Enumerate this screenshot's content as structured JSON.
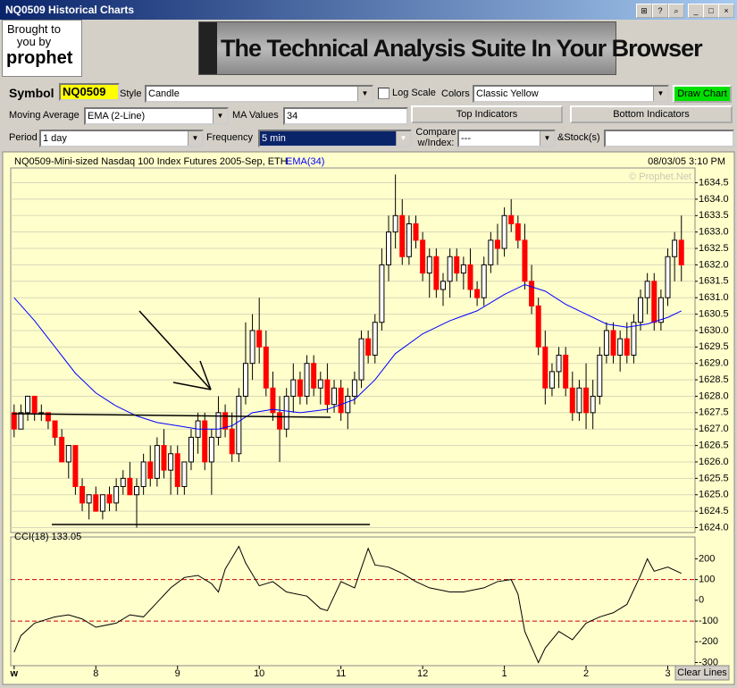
{
  "window": {
    "title": "NQ0509 Historical Charts"
  },
  "banner": {
    "brought_by": "Brought to you by",
    "brand": "prophet",
    "slogan": "The Technical Analysis Suite In Your Browser"
  },
  "controls": {
    "symbol_label": "Symbol",
    "symbol": "NQ0509",
    "style_label": "Style",
    "style": "Candle",
    "log_scale": "Log Scale",
    "colors_label": "Colors",
    "colors": "Classic Yellow",
    "draw_chart": "Draw Chart",
    "ma_label": "Moving Average",
    "ma": "EMA (2-Line)",
    "ma_values_label": "MA Values",
    "ma_values": "34",
    "top_indicators": "Top Indicators",
    "bottom_indicators": "Bottom Indicators",
    "period_label": "Period",
    "period": "1 day",
    "frequency_label": "Frequency",
    "frequency": "5 min",
    "compare_label": "Compare w/Index:",
    "compare": "---",
    "stocks_label": "&Stock(s)",
    "clear_lines": "Clear Lines"
  },
  "chart_data": [
    {
      "type": "candlestick",
      "title": "NQ0509-Mini-sized Nasdaq 100 Index Futures 2005-Sep, ETH",
      "indicator": "EMA(34)",
      "timestamp": "08/03/05 3:10 PM",
      "watermark": "© Prophet.Net",
      "xlim": [
        -0.5,
        100
      ],
      "xticks": [
        {
          "value": 0,
          "label": "w"
        },
        {
          "value": 12,
          "label": "8"
        },
        {
          "value": 24,
          "label": "9"
        },
        {
          "value": 36,
          "label": "10"
        },
        {
          "value": 48,
          "label": "11"
        },
        {
          "value": 60,
          "label": "12"
        },
        {
          "value": 72,
          "label": "1"
        },
        {
          "value": 84,
          "label": "2"
        },
        {
          "value": 96,
          "label": "3"
        }
      ],
      "ylim": [
        1623.85,
        1634.95
      ],
      "yticks": [
        {
          "value": 1624,
          "label": "1624.0"
        },
        1624.5,
        {
          "value": 1625,
          "label": "1625.0"
        },
        1625.5,
        {
          "value": 1626,
          "label": "1626.0"
        },
        1626.5,
        {
          "value": 1627,
          "label": "1627.0"
        },
        1627.5,
        {
          "value": 1628,
          "label": "1628.0"
        },
        1628.5,
        {
          "value": 1629,
          "label": "1629.0"
        },
        1629.5,
        {
          "value": 1630,
          "label": "1630.0"
        },
        1630.5,
        {
          "value": 1631,
          "label": "1631.0"
        },
        1631.5,
        {
          "value": 1632,
          "label": "1632.0"
        },
        1632.5,
        {
          "value": 1633,
          "label": "1633.0"
        },
        1633.5,
        {
          "value": 1634,
          "label": "1634.0"
        },
        1634.5
      ],
      "grid": true,
      "up_color": "#ffffff",
      "down_color": "#ff0000",
      "candles": [
        [
          1627.5,
          1627.75,
          1626.75,
          1627
        ],
        [
          1627,
          1627.75,
          1627,
          1627.5
        ],
        [
          1627.5,
          1628,
          1627.25,
          1628
        ],
        [
          1628,
          1628,
          1627.25,
          1627.5
        ],
        [
          1627.5,
          1627.75,
          1627.25,
          1627.5
        ],
        [
          1627.5,
          1627.5,
          1627,
          1627.25
        ],
        [
          1627.25,
          1627.25,
          1626.5,
          1626.75
        ],
        [
          1626.75,
          1627,
          1626,
          1626
        ],
        [
          1626,
          1626.5,
          1625.5,
          1626.5
        ],
        [
          1626.5,
          1626.5,
          1625,
          1625.25
        ],
        [
          1625.25,
          1625.5,
          1624.5,
          1624.75
        ],
        [
          1624.75,
          1625,
          1624.25,
          1625
        ],
        [
          1625,
          1625.25,
          1624.5,
          1624.5
        ],
        [
          1624.5,
          1625,
          1624.25,
          1625
        ],
        [
          1625,
          1625.25,
          1624.5,
          1624.75
        ],
        [
          1624.75,
          1625.5,
          1624.5,
          1625.25
        ],
        [
          1625.25,
          1625.75,
          1625,
          1625.5
        ],
        [
          1625.5,
          1626,
          1625,
          1625
        ],
        [
          1625,
          1625.5,
          1624,
          1625.25
        ],
        [
          1625.25,
          1626.25,
          1625,
          1626
        ],
        [
          1626,
          1626.5,
          1625.25,
          1625.5
        ],
        [
          1625.5,
          1626.75,
          1625.25,
          1626.5
        ],
        [
          1626.5,
          1627,
          1625.5,
          1625.75
        ],
        [
          1625.75,
          1626.5,
          1625,
          1626.25
        ],
        [
          1626.25,
          1626.5,
          1625,
          1625.25
        ],
        [
          1625.25,
          1626,
          1625,
          1626
        ],
        [
          1626,
          1627,
          1625.75,
          1626.75
        ],
        [
          1626.75,
          1627.5,
          1626.25,
          1627.25
        ],
        [
          1627.25,
          1627.5,
          1625.75,
          1626
        ],
        [
          1626,
          1627,
          1625,
          1626.75
        ],
        [
          1626.75,
          1628,
          1626.5,
          1627.5
        ],
        [
          1627.5,
          1627.75,
          1626.75,
          1627
        ],
        [
          1627,
          1627.5,
          1626,
          1626.25
        ],
        [
          1626.25,
          1628.25,
          1626,
          1628
        ],
        [
          1628,
          1630.25,
          1627.75,
          1629
        ],
        [
          1629,
          1630.5,
          1628.5,
          1630
        ],
        [
          1630,
          1631,
          1629,
          1629.5
        ],
        [
          1629.5,
          1630,
          1628,
          1628.25
        ],
        [
          1628.25,
          1628.75,
          1627.25,
          1627.5
        ],
        [
          1627.5,
          1628,
          1626,
          1627
        ],
        [
          1627,
          1628.25,
          1626.75,
          1628
        ],
        [
          1628,
          1629,
          1627.5,
          1628.5
        ],
        [
          1628.5,
          1628.75,
          1627.75,
          1628
        ],
        [
          1628,
          1629.25,
          1627.75,
          1629
        ],
        [
          1629,
          1629.25,
          1628,
          1628.25
        ],
        [
          1628.25,
          1628.75,
          1627.75,
          1628.5
        ],
        [
          1628.5,
          1629,
          1627.5,
          1627.75
        ],
        [
          1627.75,
          1628.5,
          1627.5,
          1628.25
        ],
        [
          1628.25,
          1628.5,
          1627.25,
          1627.5
        ],
        [
          1627.5,
          1628.25,
          1627,
          1628
        ],
        [
          1628,
          1628.75,
          1627.75,
          1628.5
        ],
        [
          1628.5,
          1630,
          1628.25,
          1629.75
        ],
        [
          1629.75,
          1630,
          1629,
          1629.25
        ],
        [
          1629.25,
          1630.5,
          1629,
          1630.25
        ],
        [
          1630.25,
          1632.5,
          1630,
          1632
        ],
        [
          1632,
          1633.5,
          1631.5,
          1633
        ],
        [
          1633,
          1634.75,
          1632.5,
          1633.5
        ],
        [
          1633.5,
          1634,
          1632,
          1632.25
        ],
        [
          1632.25,
          1633.5,
          1632,
          1633.25
        ],
        [
          1633.25,
          1633.5,
          1632.5,
          1632.75
        ],
        [
          1632.75,
          1633,
          1631.5,
          1631.75
        ],
        [
          1631.75,
          1632.5,
          1631,
          1632.25
        ],
        [
          1632.25,
          1632.5,
          1631,
          1631.25
        ],
        [
          1631.25,
          1631.75,
          1630.75,
          1631.5
        ],
        [
          1631.5,
          1632.5,
          1631,
          1632.25
        ],
        [
          1632.25,
          1632.5,
          1631.5,
          1631.75
        ],
        [
          1631.75,
          1632.25,
          1631.25,
          1632
        ],
        [
          1632,
          1632.5,
          1631,
          1631.25
        ],
        [
          1631.25,
          1631.5,
          1630.75,
          1631
        ],
        [
          1631,
          1632.25,
          1630.75,
          1632
        ],
        [
          1632,
          1633,
          1631.75,
          1632.75
        ],
        [
          1632.75,
          1633.25,
          1632,
          1632.5
        ],
        [
          1632.5,
          1633.75,
          1632.25,
          1633.5
        ],
        [
          1633.5,
          1634,
          1633,
          1633.25
        ],
        [
          1633.25,
          1633.5,
          1632.5,
          1632.75
        ],
        [
          1632.75,
          1633.25,
          1631.25,
          1631.5
        ],
        [
          1631.5,
          1632,
          1630.5,
          1630.75
        ],
        [
          1630.75,
          1631,
          1629.25,
          1629.5
        ],
        [
          1629.5,
          1630,
          1627.75,
          1628.25
        ],
        [
          1628.25,
          1629,
          1628,
          1628.75
        ],
        [
          1628.75,
          1629.5,
          1628.25,
          1629.25
        ],
        [
          1629.25,
          1629.5,
          1628,
          1628.25
        ],
        [
          1628.25,
          1628.75,
          1627.25,
          1627.5
        ],
        [
          1627.5,
          1628.5,
          1627.25,
          1628.25
        ],
        [
          1628.25,
          1629,
          1627,
          1627.5
        ],
        [
          1627.5,
          1628.5,
          1627,
          1628
        ],
        [
          1628,
          1629.5,
          1627.75,
          1629.25
        ],
        [
          1629.25,
          1630.25,
          1629,
          1630
        ],
        [
          1630,
          1630.25,
          1629,
          1629.25
        ],
        [
          1629.25,
          1630,
          1628.75,
          1629.75
        ],
        [
          1629.75,
          1630.25,
          1629,
          1629.25
        ],
        [
          1629.25,
          1630.5,
          1629,
          1630.25
        ],
        [
          1630.25,
          1631.25,
          1630,
          1631
        ],
        [
          1631,
          1631.75,
          1630.5,
          1631.5
        ],
        [
          1631.5,
          1631.75,
          1630,
          1630.25
        ],
        [
          1630.25,
          1631.25,
          1630,
          1631
        ],
        [
          1631,
          1632.5,
          1630.75,
          1632.25
        ],
        [
          1632.25,
          1633,
          1631.5,
          1632.75
        ],
        [
          1632.75,
          1633.5,
          1631.5,
          1632
        ]
      ],
      "series": [
        {
          "name": "EMA(34)",
          "color": "#0000ff",
          "x": [
            0,
            3,
            6,
            9,
            12,
            15,
            18,
            21,
            24,
            27,
            30,
            32,
            35,
            38,
            42,
            46,
            50,
            53,
            56,
            60,
            64,
            68,
            72,
            75,
            78,
            81,
            84,
            87,
            90,
            93,
            96,
            98
          ],
          "values": [
            1631,
            1630.3,
            1629.5,
            1628.7,
            1628.1,
            1627.7,
            1627.4,
            1627.2,
            1627.1,
            1627,
            1627,
            1627.1,
            1627.5,
            1627.6,
            1627.5,
            1627.6,
            1627.9,
            1628.5,
            1629.3,
            1629.9,
            1630.3,
            1630.6,
            1631.1,
            1631.4,
            1631.2,
            1630.8,
            1630.5,
            1630.2,
            1630.1,
            1630.2,
            1630.4,
            1630.6
          ]
        }
      ]
    },
    {
      "type": "line",
      "title": "CCI(18) 133.05",
      "xlim": [
        -0.5,
        100
      ],
      "ylim": [
        -315,
        305
      ],
      "yticks": [
        200,
        100,
        0,
        -100,
        -200,
        -300
      ],
      "bands": [
        100,
        -100
      ],
      "band_color": "#cc0000",
      "series": [
        {
          "name": "CCI(18)",
          "color": "#000000",
          "x": [
            0,
            1,
            3,
            6,
            8,
            10,
            12,
            15,
            17,
            19,
            21,
            23,
            25,
            27,
            29,
            30,
            31,
            33,
            34,
            36,
            38,
            40,
            43,
            45,
            46,
            48,
            50,
            52,
            53,
            55,
            57,
            59,
            61,
            64,
            66,
            69,
            71,
            73,
            74,
            75,
            77,
            78,
            80,
            82,
            84,
            86,
            88,
            90,
            92,
            93,
            94,
            96,
            98
          ],
          "values": [
            -250,
            -170,
            -110,
            -80,
            -70,
            -90,
            -130,
            -110,
            -70,
            -80,
            -10,
            60,
            110,
            120,
            80,
            40,
            150,
            260,
            180,
            70,
            90,
            40,
            20,
            -40,
            -50,
            90,
            60,
            250,
            170,
            160,
            130,
            90,
            60,
            40,
            40,
            60,
            90,
            100,
            30,
            -150,
            -300,
            -230,
            -150,
            -190,
            -110,
            -80,
            -60,
            -20,
            120,
            200,
            140,
            160,
            130
          ]
        }
      ]
    }
  ]
}
